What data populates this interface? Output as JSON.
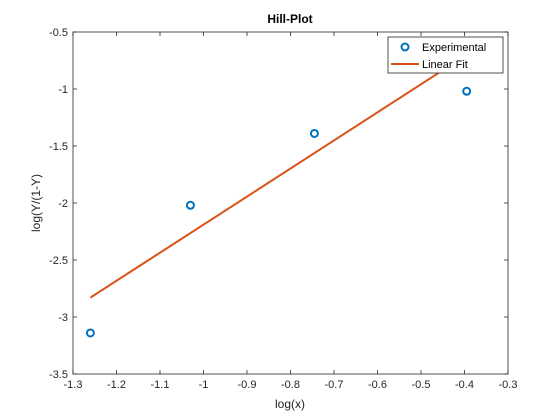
{
  "chart_data": {
    "type": "scatter",
    "title": "Hill-Plot",
    "xlabel": "log(x)",
    "ylabel": "log(Y/(1-Y)",
    "xlim": [
      -1.3,
      -0.3
    ],
    "ylim": [
      -3.5,
      -0.5
    ],
    "xticks": [
      -1.3,
      -1.2,
      -1.1,
      -1,
      -0.9,
      -0.8,
      -0.7,
      -0.6,
      -0.5,
      -0.4,
      -0.3
    ],
    "xtick_labels": [
      "-1.3",
      "-1.2",
      "-1.1",
      "-1",
      "-0.9",
      "-0.8",
      "-0.7",
      "-0.6",
      "-0.5",
      "-0.4",
      "-0.3"
    ],
    "yticks": [
      -3.5,
      -3,
      -2.5,
      -2,
      -1.5,
      -1,
      -0.5
    ],
    "ytick_labels": [
      "-3.5",
      "-3",
      "-2.5",
      "-2",
      "-1.5",
      "-1",
      "-0.5"
    ],
    "grid": false,
    "legend_position": "top-right",
    "series": [
      {
        "name": "Experimental",
        "kind": "markers",
        "marker": "circle",
        "color": "#0072BD",
        "x": [
          -1.26,
          -1.03,
          -0.745,
          -0.395
        ],
        "y": [
          -3.14,
          -2.02,
          -1.39,
          -1.02
        ]
      },
      {
        "name": "Linear Fit",
        "kind": "line",
        "color": "#D95319",
        "x": [
          -1.26,
          -0.395
        ],
        "y": [
          -2.83,
          -0.7
        ]
      }
    ]
  }
}
